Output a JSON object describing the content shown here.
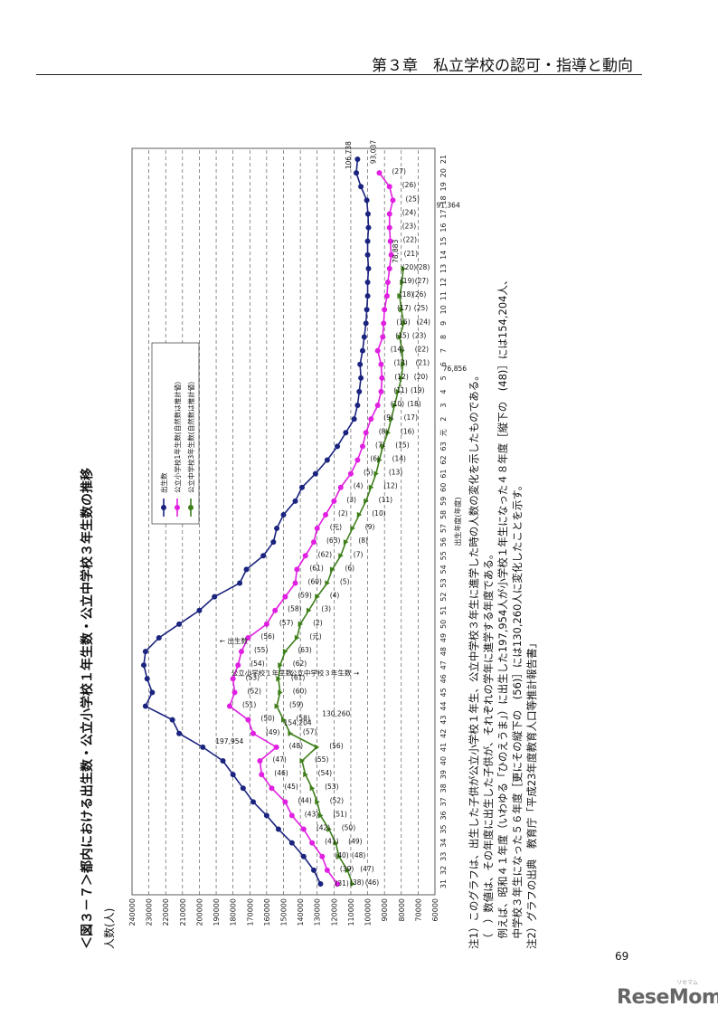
{
  "header": {
    "chapter_title": "第３章　私立学校の認可・指導と動向"
  },
  "page_number": "69",
  "watermark": {
    "brand": "ReseMom",
    "sub": "リセマム"
  },
  "figure": {
    "title": "＜図３－７＞都内における出生数・公立小学校１年生数・公立中学校３年生数の推移",
    "y_unit": "人数(人)"
  },
  "notes": [
    "注1）このグラフは、出生した子供が公立小学校１年生、公立中学校３年生に進学した時の人数の変化を示したものである。",
    "　（　）数値は、その年度に出生した子供が、それぞれの学年に進学する年度である。",
    "　例えば、昭和４１年度（いわゆる「ひのえうま」）に出生した197,954人が小学校１年生になった４８年度［縦下の　(48)］には154,204人、",
    "　中学校３年生になった５６年度［更にその縦下の　(56)］には130,260人に変化したことを示す。",
    "注2）グラフの出典　教育庁「平成23年度教育人口等推計報告書」"
  ],
  "colors": {
    "births": "#1a237e",
    "elementary": "#e020e0",
    "junior_high": "#3e7f1a"
  },
  "chart_data": {
    "type": "line",
    "title": "＜図３－７＞都内における出生数・公立小学校１年生数・公立中学校３年生数の推移",
    "ylabel": "人数(人)",
    "xlabel": "出生年度(年度)",
    "ylim": [
      60000,
      240000
    ],
    "y_ticks": [
      60000,
      70000,
      80000,
      90000,
      100000,
      110000,
      120000,
      130000,
      140000,
      150000,
      160000,
      170000,
      180000,
      190000,
      200000,
      210000,
      220000,
      230000,
      240000
    ],
    "grid": "horizontal dashed",
    "legend_position": "upper-right",
    "categories": [
      "31",
      "32",
      "33",
      "34",
      "35",
      "36",
      "37",
      "38",
      "39",
      "40",
      "41",
      "42",
      "43",
      "44",
      "45",
      "46",
      "47",
      "48",
      "49",
      "50",
      "51",
      "52",
      "53",
      "54",
      "55",
      "56",
      "57",
      "58",
      "59",
      "60",
      "61",
      "62",
      "63",
      "元",
      "2",
      "3",
      "4",
      "5",
      "6",
      "7",
      "8",
      "9",
      "10",
      "11",
      "12",
      "13",
      "14",
      "15",
      "16",
      "17",
      "18",
      "19",
      "20",
      "21"
    ],
    "series": [
      {
        "name": "出生数",
        "values": [
          128000,
          132000,
          138000,
          145000,
          153000,
          160000,
          168000,
          174000,
          180000,
          186000,
          197954,
          212000,
          216000,
          232000,
          228000,
          231000,
          233000,
          232000,
          224000,
          212000,
          200000,
          191000,
          176000,
          172000,
          162000,
          156000,
          154000,
          150000,
          143000,
          139000,
          131000,
          124000,
          118000,
          113000,
          108000,
          106000,
          105000,
          104000,
          104500,
          103000,
          102000,
          101000,
          100500,
          100000,
          100000,
          99500,
          100000,
          100000,
          99500,
          99800,
          100500,
          104000,
          106738,
          106000
        ]
      },
      {
        "name": "公立小学校1年生数(自然数は推計値)",
        "values": [
          118000,
          124000,
          127000,
          133000,
          138000,
          145000,
          149000,
          157000,
          163000,
          164000,
          154204,
          168000,
          171000,
          182000,
          179000,
          180000,
          177000,
          175000,
          171000,
          160000,
          155000,
          149000,
          143000,
          142000,
          137000,
          132000,
          130000,
          125000,
          120000,
          116000,
          110000,
          106000,
          103000,
          101000,
          98000,
          94000,
          92000,
          91500,
          92000,
          94000,
          91000,
          90500,
          90000,
          88500,
          88000,
          87000,
          86000,
          86500,
          87000,
          87000,
          85000,
          87000,
          93037,
          null
        ]
      },
      {
        "name": "公立中学校3年生数(自然数は推計値)",
        "values": [
          109000,
          112000,
          117000,
          119000,
          123000,
          128000,
          130000,
          133000,
          137000,
          139000,
          130260,
          146000,
          150000,
          154000,
          152000,
          153000,
          152000,
          149000,
          142000,
          140000,
          135000,
          130000,
          124000,
          121000,
          116000,
          113000,
          109000,
          105000,
          101000,
          98000,
          95000,
          93000,
          91000,
          88000,
          86000,
          84000,
          82000,
          80000,
          79000,
          79500,
          81000,
          78500,
          80000,
          81000,
          79500,
          78883,
          null,
          null,
          null,
          null,
          null,
          null,
          null,
          null
        ]
      }
    ],
    "annotations": {
      "births_start": "(31)",
      "births_peak": "197,954",
      "births_end": "106,738",
      "birth_label": "出生数",
      "elem_label": "公立小学校１年生数",
      "jh_label": "公立中学校３年生数",
      "elem_pointer": "154,204",
      "jh_pointer": "130,260",
      "elem_end": "93,037",
      "elem_end_low": "91,364",
      "jh_end": "78,883",
      "jh_low": "76,856",
      "elem_tags": [
        "(38)",
        "(39)",
        "(40)",
        "(41)",
        "(42)",
        "(43)",
        "(44)",
        "(45)",
        "(46)",
        "(47)",
        "(48)",
        "(49)",
        "(50)",
        "(51)",
        "(52)",
        "(53)",
        "(54)",
        "(55)",
        "(56)",
        "(57)",
        "(58)",
        "(59)",
        "(60)",
        "(61)",
        "(62)",
        "(63)",
        "(元)",
        "(2)",
        "(3)",
        "(4)",
        "(5)",
        "(6)",
        "(7)",
        "(8)",
        "(9)",
        "(10)",
        "(11)",
        "(12)",
        "(13)",
        "(14)",
        "(15)",
        "(16)",
        "(17)",
        "(18)",
        "(19)",
        "(20)",
        "(21)",
        "(22)",
        "(23)",
        "(24)",
        "(25)",
        "(26)",
        "(27)",
        "(28)"
      ],
      "jh_tags": [
        "(46)",
        "(47)",
        "(48)",
        "(49)",
        "(50)",
        "(51)",
        "(52)",
        "(53)",
        "(54)",
        "(55)",
        "(56)",
        "(57)",
        "(58)",
        "(59)",
        "(60)",
        "(61)",
        "(62)",
        "(63)",
        "(元)",
        "(2)",
        "(3)",
        "(4)",
        "(5)",
        "(6)",
        "(7)",
        "(8)",
        "(9)",
        "(10)",
        "(11)",
        "(12)",
        "(13)",
        "(14)",
        "(15)",
        "(16)",
        "(17)",
        "(18)",
        "(19)",
        "(20)",
        "(21)",
        "(22)",
        "(23)",
        "(24)",
        "(25)",
        "(26)",
        "(27)",
        "(28)"
      ]
    }
  }
}
